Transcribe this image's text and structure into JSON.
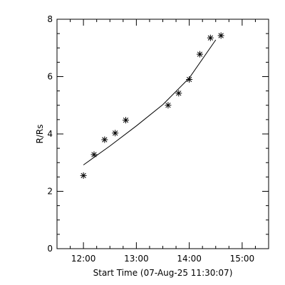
{
  "chart_data": {
    "type": "scatter",
    "title": "",
    "xlabel": "Start Time (07-Aug-25 11:30:07)",
    "ylabel": "R/Rs",
    "x_unit": "time HH:MM",
    "xlim": [
      "11:30",
      "15:30"
    ],
    "ylim": [
      0,
      8
    ],
    "grid": false,
    "x_ticks": [
      "12:00",
      "13:00",
      "14:00",
      "15:00"
    ],
    "y_ticks": [
      "0",
      "2",
      "4",
      "6",
      "8"
    ],
    "series": [
      {
        "marker": "asterisk",
        "points": [
          {
            "x": "12:00",
            "y": 2.55
          },
          {
            "x": "12:12",
            "y": 3.28
          },
          {
            "x": "12:24",
            "y": 3.8
          },
          {
            "x": "12:36",
            "y": 4.03
          },
          {
            "x": "12:48",
            "y": 4.48
          },
          {
            "x": "13:36",
            "y": 5.0
          },
          {
            "x": "13:48",
            "y": 5.42
          },
          {
            "x": "14:00",
            "y": 5.9
          },
          {
            "x": "14:12",
            "y": 6.78
          },
          {
            "x": "14:24",
            "y": 7.35
          },
          {
            "x": "14:36",
            "y": 7.43
          }
        ]
      }
    ],
    "fit_line": {
      "points": [
        {
          "x": "12:00",
          "y": 2.92
        },
        {
          "x": "12:30",
          "y": 3.58
        },
        {
          "x": "13:00",
          "y": 4.28
        },
        {
          "x": "13:30",
          "y": 5.02
        },
        {
          "x": "14:00",
          "y": 5.95
        },
        {
          "x": "14:30",
          "y": 7.28
        }
      ]
    }
  }
}
